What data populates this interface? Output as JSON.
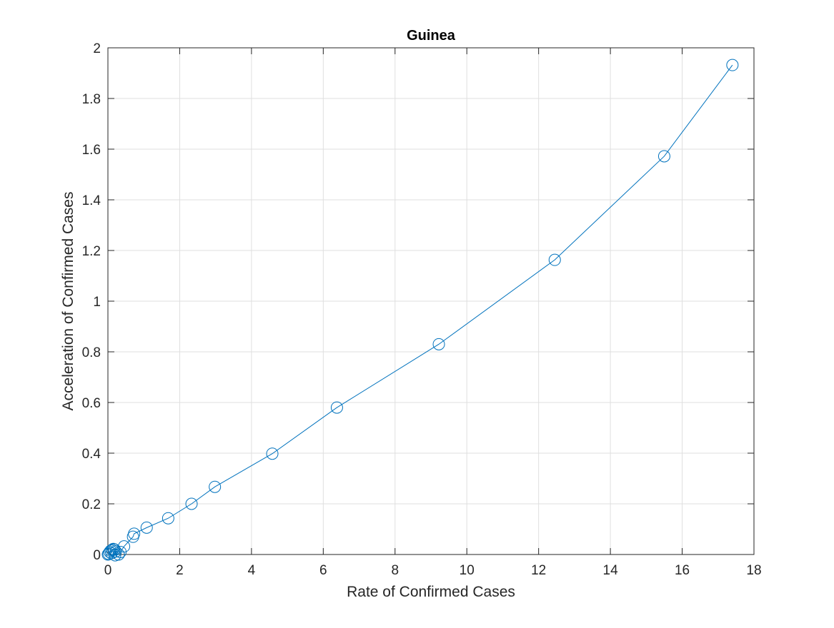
{
  "chart_data": {
    "type": "line",
    "title": "Guinea",
    "xlabel": "Rate of Confirmed Cases",
    "ylabel": "Acceleration of Confirmed Cases",
    "xlim": [
      0,
      18
    ],
    "ylim": [
      0,
      2
    ],
    "xticks": [
      0,
      2,
      4,
      6,
      8,
      10,
      12,
      14,
      16,
      18
    ],
    "yticks": [
      0,
      0.2,
      0.4,
      0.6,
      0.8,
      1,
      1.2,
      1.4,
      1.6,
      1.8,
      2
    ],
    "xtick_labels": [
      "0",
      "2",
      "4",
      "6",
      "8",
      "10",
      "12",
      "14",
      "16",
      "18"
    ],
    "ytick_labels": [
      "0",
      "0.2",
      "0.4",
      "0.6",
      "0.8",
      "1",
      "1.2",
      "1.4",
      "1.6",
      "1.8",
      "2"
    ],
    "grid": true,
    "marker": "circle",
    "series": [
      {
        "color": "#0072bd",
        "x": [
          0.0,
          0.02,
          0.05,
          0.08,
          0.1,
          0.12,
          0.15,
          0.18,
          0.22,
          0.2,
          0.3,
          0.35,
          0.45,
          0.7,
          0.73,
          1.08,
          1.68,
          2.33,
          2.98,
          4.58,
          6.38,
          9.22,
          12.45,
          15.5,
          17.4
        ],
        "y": [
          0.0,
          0.003,
          0.01,
          0.015,
          0.005,
          0.018,
          0.022,
          0.02,
          0.012,
          -0.003,
          0.0,
          0.01,
          0.032,
          0.07,
          0.082,
          0.106,
          0.143,
          0.2,
          0.267,
          0.398,
          0.58,
          0.83,
          1.163,
          1.572,
          1.932
        ]
      }
    ]
  }
}
